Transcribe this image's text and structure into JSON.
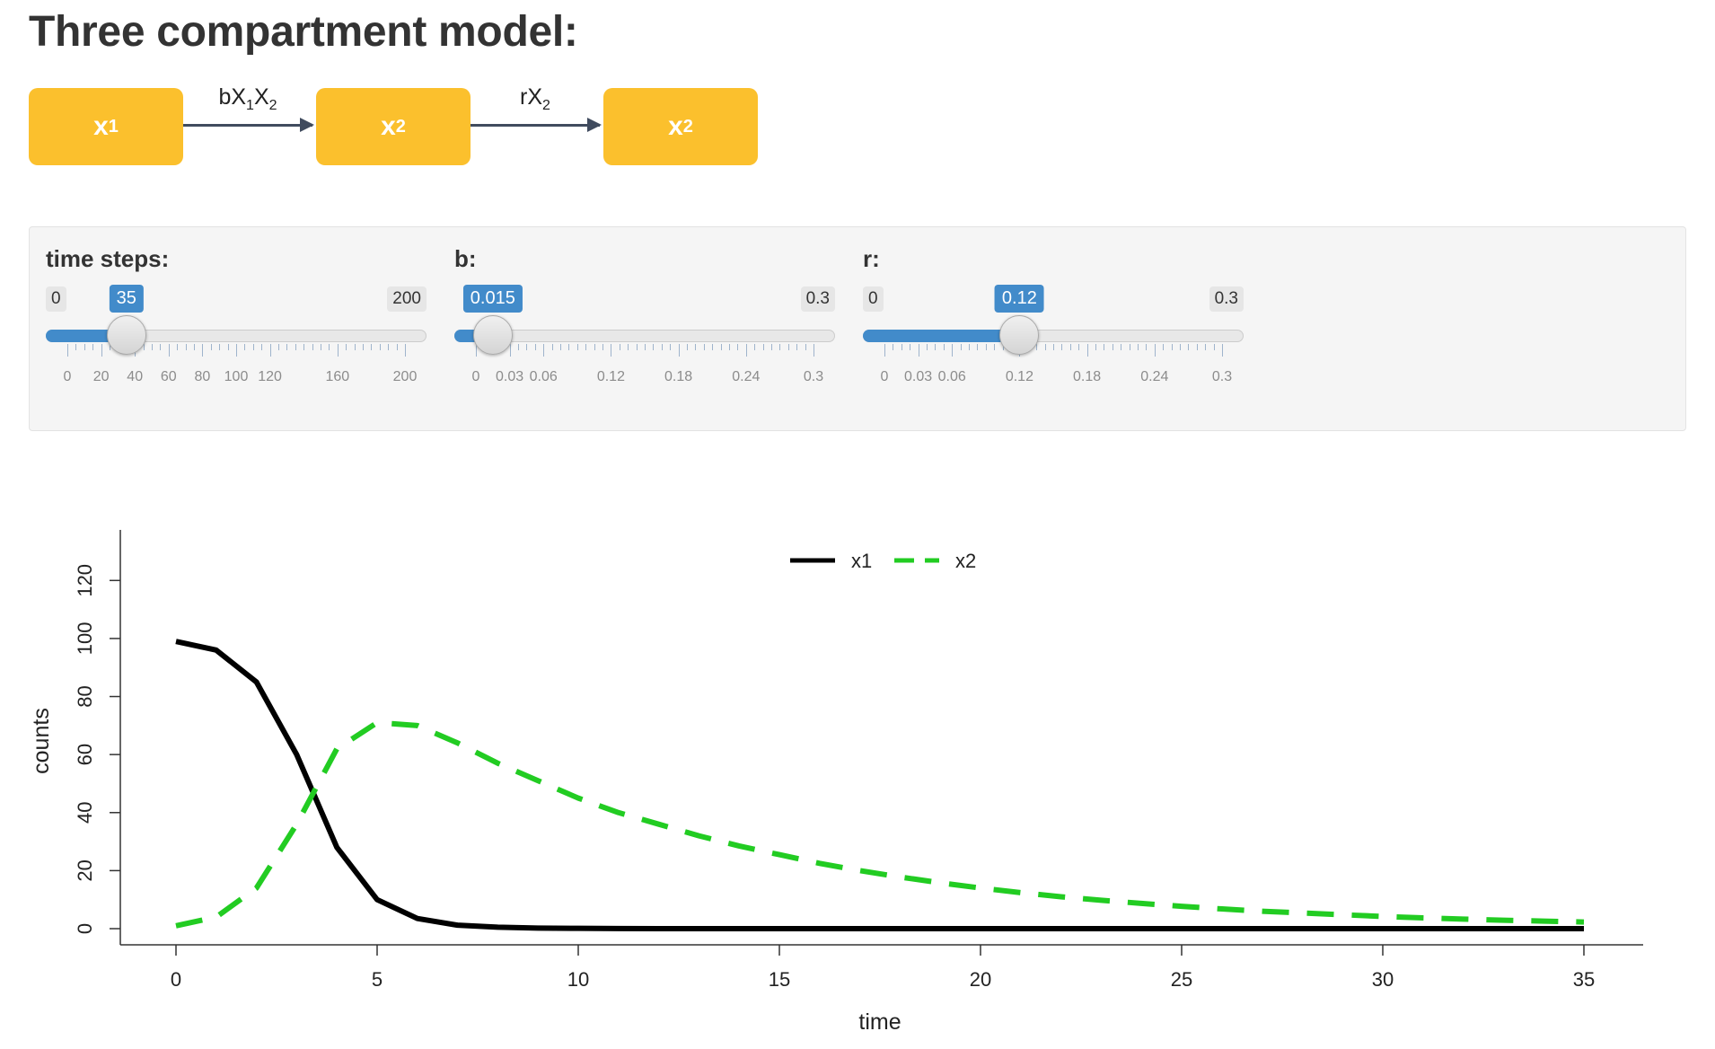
{
  "title": "Three compartment model:",
  "diagram": {
    "compartments": [
      {
        "label": "x",
        "sub": "1"
      },
      {
        "label": "x",
        "sub": "2"
      },
      {
        "label": "x",
        "sub": "2"
      }
    ],
    "arrows": [
      {
        "parts": [
          [
            "b",
            ""
          ],
          [
            "X",
            "1"
          ],
          [
            "X",
            "2"
          ]
        ]
      },
      {
        "parts": [
          [
            "r",
            ""
          ],
          [
            "X",
            "2"
          ]
        ]
      }
    ]
  },
  "sliders": [
    {
      "label": "time steps:",
      "min": 0,
      "max": 200,
      "value": 35,
      "min_text": "0",
      "max_text": "200",
      "value_text": "35",
      "ticks": [
        0,
        20,
        40,
        60,
        80,
        100,
        120,
        160,
        200
      ],
      "tick_labels": [
        "0",
        "20",
        "40",
        "60",
        "80",
        "100",
        "120",
        "160",
        "200"
      ]
    },
    {
      "label": "b:",
      "min": 0,
      "max": 0.3,
      "value": 0.015,
      "min_text": "",
      "max_text": "0.3",
      "value_text": "0.015",
      "ticks": [
        0,
        0.03,
        0.06,
        0.12,
        0.18,
        0.24,
        0.3
      ],
      "tick_labels": [
        "0",
        "0.03",
        "0.06",
        "0.12",
        "0.18",
        "0.24",
        "0.3"
      ]
    },
    {
      "label": "r:",
      "min": 0,
      "max": 0.3,
      "value": 0.12,
      "min_text": "0",
      "max_text": "0.3",
      "value_text": "0.12",
      "ticks": [
        0,
        0.03,
        0.06,
        0.12,
        0.18,
        0.24,
        0.3
      ],
      "tick_labels": [
        "0",
        "0.03",
        "0.06",
        "0.12",
        "0.18",
        "0.24",
        "0.3"
      ]
    }
  ],
  "colors": {
    "compartment": "#fbc02d",
    "slider_accent": "#428bca",
    "x1": "#000000",
    "x2": "#22cc22"
  },
  "chart_data": {
    "type": "line",
    "xlabel": "time",
    "ylabel": "counts",
    "xlim": [
      0,
      35
    ],
    "ylim": [
      0,
      130
    ],
    "xticks": [
      0,
      5,
      10,
      15,
      20,
      25,
      30,
      35
    ],
    "yticks": [
      0,
      20,
      40,
      60,
      80,
      100,
      120
    ],
    "legend_position": "top-center",
    "series": [
      {
        "name": "x1",
        "color": "#000000",
        "style": "solid",
        "x": [
          0,
          1,
          2,
          3,
          4,
          5,
          6,
          7,
          8,
          9,
          10,
          11,
          12,
          13,
          14,
          15,
          16,
          17,
          18,
          19,
          20,
          21,
          22,
          23,
          24,
          25,
          26,
          27,
          28,
          29,
          30,
          31,
          32,
          33,
          34,
          35
        ],
        "y": [
          99,
          96,
          85,
          60,
          28,
          10,
          3.5,
          1.2,
          0.5,
          0.2,
          0.1,
          0.05,
          0,
          0,
          0,
          0,
          0,
          0,
          0,
          0,
          0,
          0,
          0,
          0,
          0,
          0,
          0,
          0,
          0,
          0,
          0,
          0,
          0,
          0,
          0,
          0
        ]
      },
      {
        "name": "x2",
        "color": "#22cc22",
        "style": "dashed",
        "x": [
          0,
          1,
          2,
          3,
          4,
          5,
          6,
          7,
          8,
          9,
          10,
          11,
          12,
          13,
          14,
          15,
          16,
          17,
          18,
          19,
          20,
          21,
          22,
          23,
          24,
          25,
          26,
          27,
          28,
          29,
          30,
          31,
          32,
          33,
          34,
          35
        ],
        "y": [
          1,
          4,
          14,
          36,
          62,
          71,
          70,
          64,
          57,
          51,
          45,
          40,
          36,
          32,
          28.5,
          25.5,
          22.5,
          20,
          17.8,
          15.8,
          14,
          12.4,
          11,
          9.8,
          8.7,
          7.7,
          6.8,
          6.0,
          5.4,
          4.8,
          4.2,
          3.7,
          3.3,
          2.9,
          2.6,
          2.3
        ]
      }
    ]
  }
}
